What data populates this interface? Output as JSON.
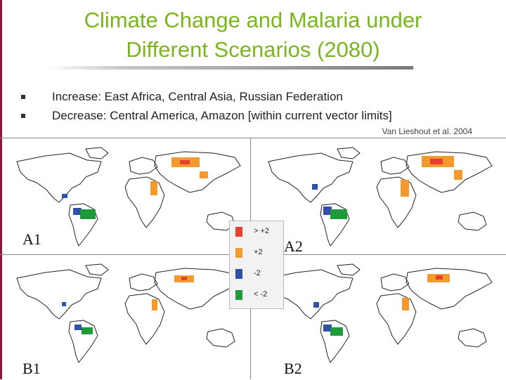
{
  "slide": {
    "title_line1": "Climate Change and Malaria under",
    "title_line2": "Different Scenarios (2080)",
    "bullets": [
      "Increase: East Africa, Central Asia, Russian Federation",
      "Decrease: Central America, Amazon [within current vector limits]"
    ],
    "citation": "Van Lieshout et al. 2004"
  },
  "maps": {
    "a1_label": "A1",
    "a2_label": "A2",
    "b1_label": "B1",
    "b2_label": "B2"
  },
  "legend": {
    "items": [
      {
        "label": "> +2",
        "color": "#e8412a"
      },
      {
        "label": "+2",
        "color": "#f39a2e"
      },
      {
        "label": "-2",
        "color": "#2f52a8"
      },
      {
        "label": "< -2",
        "color": "#1f9a3a"
      }
    ]
  },
  "colors": {
    "title": "#7ab51d",
    "border": "#8b1a3a"
  }
}
